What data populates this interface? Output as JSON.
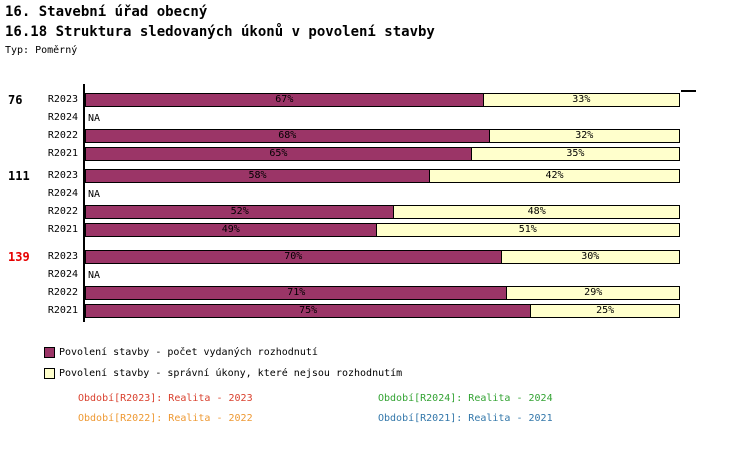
{
  "header": {
    "title1": "16. Stavební úřad obecný",
    "title2": "16.18 Struktura sledovaných úkonů v povolení stavby",
    "type_label": "Typ: Poměrný"
  },
  "colors": {
    "dark_series": "#9b3567",
    "light_series": "#ffffcc",
    "axis": "#000000",
    "group_alert": "#e60000"
  },
  "chart_data": {
    "type": "bar",
    "orientation": "horizontal",
    "stacked": true,
    "unit": "%",
    "xlim": [
      0,
      100
    ],
    "grid": false,
    "na_text": "NA",
    "series": [
      {
        "name": "Povolení stavby - počet vydaných rozhodnutí",
        "color": "#9b3567"
      },
      {
        "name": "Povolení stavby - správní úkony, které nejsou rozhodnutím",
        "color": "#ffffcc"
      }
    ],
    "groups": [
      {
        "id": "76",
        "id_color": "#000000",
        "rows": [
          {
            "label": "R2023",
            "dark": 67,
            "light": 33
          },
          {
            "label": "R2024",
            "na": "NA"
          },
          {
            "label": "R2022",
            "dark": 68,
            "light": 32
          },
          {
            "label": "R2021",
            "dark": 65,
            "light": 35
          }
        ]
      },
      {
        "id": "111",
        "id_color": "#000000",
        "rows": [
          {
            "label": "R2023",
            "dark": 58,
            "light": 42
          },
          {
            "label": "R2024",
            "na": "NA"
          },
          {
            "label": "R2022",
            "dark": 52,
            "light": 48
          },
          {
            "label": "R2021",
            "dark": 49,
            "light": 51
          }
        ]
      },
      {
        "id": "139",
        "id_color": "#e60000",
        "rows": [
          {
            "label": "R2023",
            "dark": 70,
            "light": 30
          },
          {
            "label": "R2024",
            "na": "NA"
          },
          {
            "label": "R2022",
            "dark": 71,
            "light": 29
          },
          {
            "label": "R2021",
            "dark": 75,
            "light": 25
          }
        ]
      }
    ]
  },
  "periods": [
    {
      "label": "Období[R2023]: Realita - 2023",
      "color": "#d9412e"
    },
    {
      "label": "Období[R2024]: Realita - 2024",
      "color": "#33a333"
    },
    {
      "label": "Období[R2022]: Realita - 2022",
      "color": "#ee9933"
    },
    {
      "label": "Období[R2021]: Realita - 2021",
      "color": "#3377aa"
    }
  ]
}
